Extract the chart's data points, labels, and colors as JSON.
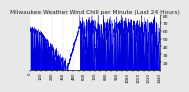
{
  "title": "Milwaukee Weather Wind Chill per Minute (Last 24 Hours)",
  "title_fontsize": 4.2,
  "bg_color": "#e8e8e8",
  "plot_bg_color": "#ffffff",
  "line_color": "#0000dd",
  "fill_color": "#0000dd",
  "y_min": 10,
  "y_max": 80,
  "yticks": [
    20,
    30,
    40,
    50,
    60,
    70,
    80
  ],
  "ytick_fontsize": 3.2,
  "xtick_fontsize": 2.8,
  "num_points": 1440,
  "grid_color": "#aaaaaa",
  "vline_color": "#888888",
  "num_vlines": 12
}
